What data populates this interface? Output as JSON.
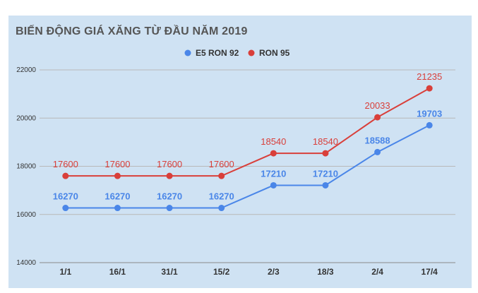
{
  "chart_data": {
    "type": "line",
    "title": "BIẾN ĐỘNG GIÁ XĂNG TỪ ĐẦU NĂM 2019",
    "categories": [
      "1/1",
      "16/1",
      "31/1",
      "15/2",
      "2/3",
      "18/3",
      "2/4",
      "17/4"
    ],
    "series": [
      {
        "name": "E5 RON 92",
        "color": "#4a86e8",
        "values": [
          16270,
          16270,
          16270,
          16270,
          17210,
          17210,
          18588,
          19703
        ]
      },
      {
        "name": "RON 95",
        "color": "#d93f3a",
        "values": [
          17600,
          17600,
          17600,
          17600,
          18540,
          18540,
          20033,
          21235
        ]
      }
    ],
    "yticks": [
      "14000",
      "16000",
      "18000",
      "20000",
      "22000"
    ],
    "ylim": [
      14000,
      22000
    ],
    "legend_position": "top",
    "grid": true
  }
}
